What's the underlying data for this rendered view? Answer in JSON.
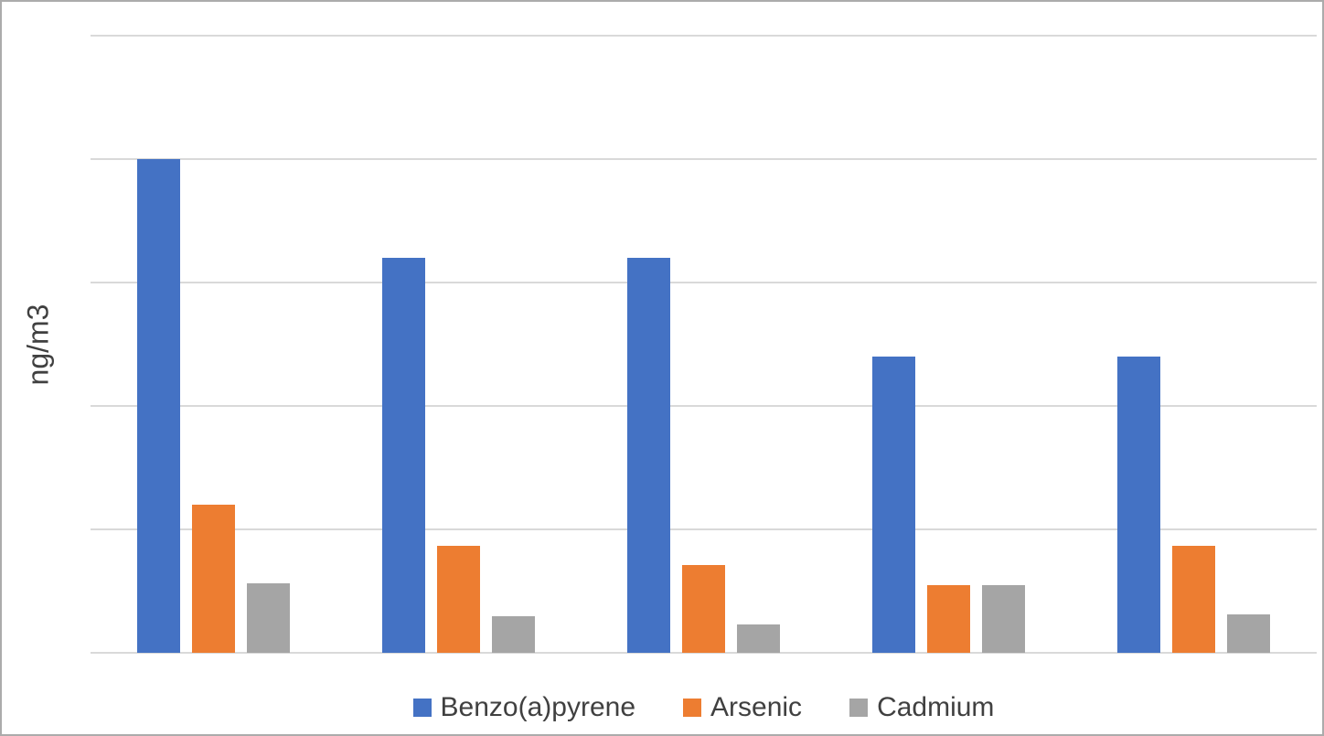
{
  "figure": {
    "background_color": "#FFFFFF",
    "border_color": "#ABABAB",
    "text_color": "#404040"
  },
  "chart_data": {
    "type": "bar",
    "title": "",
    "xlabel": "",
    "ylabel": "ng/m3",
    "categories": [
      "",
      "",
      "",
      "",
      ""
    ],
    "group_count": 5,
    "series": [
      {
        "name": "Benzo(a)pyrene",
        "color": "#4472C4",
        "values": [
          4.0,
          3.2,
          3.2,
          2.4,
          2.4
        ]
      },
      {
        "name": "Arsenic",
        "color": "#ED7D31",
        "values": [
          1.2,
          0.87,
          0.71,
          0.55,
          0.87
        ]
      },
      {
        "name": "Cadmium",
        "color": "#A5A5A5",
        "values": [
          0.56,
          0.3,
          0.23,
          0.55,
          0.31
        ]
      }
    ],
    "ylim": [
      0,
      5
    ],
    "gridline_count": 6,
    "gridline_color": "#D9D9D9",
    "y_tick_labels_visible": false,
    "x_tick_labels_visible": false,
    "grid": "horizontal",
    "legend_position": "bottom"
  }
}
